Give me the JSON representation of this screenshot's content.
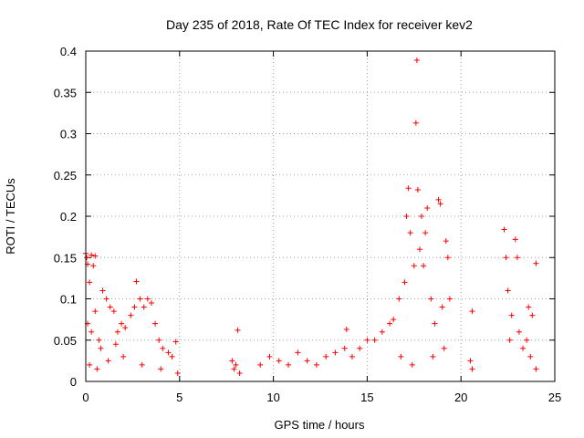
{
  "chart_data": {
    "type": "scatter",
    "title": "Day 235 of 2018, Rate Of TEC Index for receiver kev2",
    "xlabel": "GPS time / hours",
    "ylabel": "ROTI / TECUs",
    "xlim": [
      0,
      25
    ],
    "ylim": [
      0,
      0.4
    ],
    "xticks": [
      "0",
      "5",
      "10",
      "15",
      "20",
      "25"
    ],
    "yticks": [
      "0",
      "0.05",
      "0.1",
      "0.15",
      "0.2",
      "0.25",
      "0.3",
      "0.35",
      "0.4"
    ],
    "grid": true,
    "marker": "+",
    "color": "#ff0000",
    "series": [
      {
        "name": "kev2",
        "points": [
          [
            0.0,
            0.155
          ],
          [
            0.05,
            0.15
          ],
          [
            0.1,
            0.142
          ],
          [
            0.2,
            0.12
          ],
          [
            0.3,
            0.153
          ],
          [
            0.4,
            0.14
          ],
          [
            0.5,
            0.152
          ],
          [
            0.1,
            0.07
          ],
          [
            0.3,
            0.06
          ],
          [
            0.5,
            0.085
          ],
          [
            0.7,
            0.05
          ],
          [
            0.9,
            0.11
          ],
          [
            1.1,
            0.1
          ],
          [
            1.3,
            0.09
          ],
          [
            1.5,
            0.085
          ],
          [
            1.7,
            0.06
          ],
          [
            1.9,
            0.07
          ],
          [
            2.1,
            0.065
          ],
          [
            2.4,
            0.08
          ],
          [
            2.6,
            0.09
          ],
          [
            2.7,
            0.121
          ],
          [
            2.9,
            0.1
          ],
          [
            3.1,
            0.09
          ],
          [
            3.3,
            0.1
          ],
          [
            3.5,
            0.095
          ],
          [
            3.7,
            0.07
          ],
          [
            3.9,
            0.05
          ],
          [
            4.1,
            0.04
          ],
          [
            4.4,
            0.035
          ],
          [
            4.6,
            0.03
          ],
          [
            4.8,
            0.048
          ],
          [
            0.2,
            0.02
          ],
          [
            0.6,
            0.015
          ],
          [
            1.2,
            0.025
          ],
          [
            2.0,
            0.03
          ],
          [
            3.0,
            0.02
          ],
          [
            4.0,
            0.015
          ],
          [
            4.9,
            0.01
          ],
          [
            0.8,
            0.04
          ],
          [
            1.6,
            0.045
          ],
          [
            7.8,
            0.025
          ],
          [
            7.9,
            0.015
          ],
          [
            8.0,
            0.02
          ],
          [
            8.1,
            0.062
          ],
          [
            8.2,
            0.01
          ],
          [
            9.3,
            0.02
          ],
          [
            9.8,
            0.03
          ],
          [
            10.3,
            0.025
          ],
          [
            10.8,
            0.02
          ],
          [
            11.3,
            0.035
          ],
          [
            11.8,
            0.025
          ],
          [
            12.3,
            0.02
          ],
          [
            12.8,
            0.03
          ],
          [
            13.3,
            0.035
          ],
          [
            13.8,
            0.04
          ],
          [
            13.9,
            0.063
          ],
          [
            14.2,
            0.03
          ],
          [
            14.6,
            0.04
          ],
          [
            15.0,
            0.05
          ],
          [
            15.4,
            0.05
          ],
          [
            15.8,
            0.06
          ],
          [
            16.2,
            0.07
          ],
          [
            16.4,
            0.075
          ],
          [
            16.7,
            0.1
          ],
          [
            17.0,
            0.12
          ],
          [
            17.1,
            0.2
          ],
          [
            17.2,
            0.234
          ],
          [
            17.3,
            0.18
          ],
          [
            17.5,
            0.14
          ],
          [
            17.6,
            0.313
          ],
          [
            17.65,
            0.389
          ],
          [
            17.7,
            0.232
          ],
          [
            17.8,
            0.16
          ],
          [
            17.9,
            0.2
          ],
          [
            18.0,
            0.14
          ],
          [
            18.1,
            0.18
          ],
          [
            18.2,
            0.21
          ],
          [
            18.4,
            0.1
          ],
          [
            18.6,
            0.07
          ],
          [
            18.8,
            0.22
          ],
          [
            18.9,
            0.215
          ],
          [
            19.0,
            0.09
          ],
          [
            19.2,
            0.17
          ],
          [
            19.3,
            0.15
          ],
          [
            19.4,
            0.1
          ],
          [
            16.8,
            0.03
          ],
          [
            17.4,
            0.02
          ],
          [
            18.5,
            0.03
          ],
          [
            19.1,
            0.04
          ],
          [
            20.5,
            0.025
          ],
          [
            20.6,
            0.085
          ],
          [
            20.6,
            0.015
          ],
          [
            22.3,
            0.184
          ],
          [
            22.4,
            0.15
          ],
          [
            22.5,
            0.11
          ],
          [
            22.6,
            0.05
          ],
          [
            22.7,
            0.08
          ],
          [
            22.9,
            0.172
          ],
          [
            23.0,
            0.15
          ],
          [
            23.1,
            0.06
          ],
          [
            23.3,
            0.04
          ],
          [
            23.5,
            0.05
          ],
          [
            23.6,
            0.09
          ],
          [
            23.7,
            0.03
          ],
          [
            23.8,
            0.08
          ],
          [
            24.0,
            0.143
          ],
          [
            24.0,
            0.015
          ]
        ]
      }
    ]
  }
}
